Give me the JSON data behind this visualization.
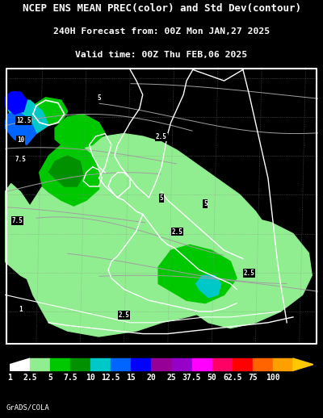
{
  "title_line1": "NCEP ENS MEAN PREC(color) and Std Dev(contour)",
  "title_line2": "240H Forecast from: 00Z Mon JAN,27 2025",
  "title_line3": "Valid time: 00Z Thu FEB,06 2025",
  "colorbar_labels": [
    "1",
    "2.5",
    "5",
    "7.5",
    "10",
    "12.5",
    "15",
    "20",
    "25",
    "37.5",
    "50",
    "62.5",
    "75",
    "100"
  ],
  "colorbar_colors": [
    "#ffffff",
    "#90ee90",
    "#00c800",
    "#009000",
    "#00c8c8",
    "#0064ff",
    "#0000ff",
    "#960096",
    "#9600c8",
    "#ff00ff",
    "#ff0064",
    "#ff0000",
    "#ff6400",
    "#ffa000",
    "#ffc800"
  ],
  "credit_text": "GrADS/COLA",
  "background_color": "#000000",
  "text_color": "#ffffff",
  "title_fontsize": 9.0,
  "subtitle_fontsize": 8.2,
  "credit_fontsize": 6.5,
  "colorbar_label_fontsize": 7.0,
  "light_green": "#90ee90",
  "mid_green": "#00c800",
  "dark_green": "#009000",
  "teal": "#00c8c8",
  "blue": "#0064ff",
  "dark_blue": "#0000ff",
  "grey_contour": "#a0a0a0",
  "white": "#ffffff"
}
